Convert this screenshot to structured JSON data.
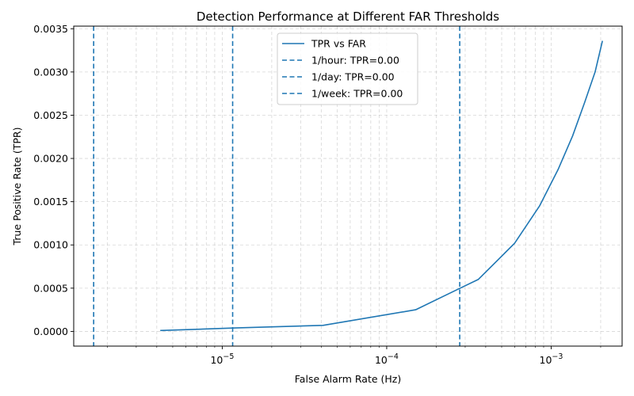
{
  "chart_data": {
    "type": "line",
    "title": "Detection Performance at Different FAR Thresholds",
    "xlabel": "False Alarm Rate (Hz)",
    "ylabel": "True Positive Rate (TPR)",
    "x_scale": "log",
    "xlim": [
      1.25e-06,
      0.0027
    ],
    "ylim": [
      -0.00017,
      0.00353
    ],
    "grid": true,
    "legend_position": "top-center",
    "xticks": [
      {
        "value": 1e-05,
        "base": "10",
        "exp": "−5"
      },
      {
        "value": 0.0001,
        "base": "10",
        "exp": "−4"
      },
      {
        "value": 0.001,
        "base": "10",
        "exp": "−3"
      }
    ],
    "yticks": [
      {
        "value": 0.0,
        "label": "0.0000"
      },
      {
        "value": 0.0005,
        "label": "0.0005"
      },
      {
        "value": 0.001,
        "label": "0.0010"
      },
      {
        "value": 0.0015,
        "label": "0.0015"
      },
      {
        "value": 0.002,
        "label": "0.0020"
      },
      {
        "value": 0.0025,
        "label": "0.0025"
      },
      {
        "value": 0.003,
        "label": "0.0030"
      },
      {
        "value": 0.0035,
        "label": "0.0035"
      }
    ],
    "series": [
      {
        "name": "TPR vs FAR",
        "color": "#1f77b4",
        "style": "solid",
        "x": [
          4.2e-06,
          1.2e-05,
          4.1e-05,
          0.00015,
          0.00028,
          0.00036,
          0.0006,
          0.00085,
          0.0011,
          0.00135,
          0.0016,
          0.00185,
          0.00205
        ],
        "y": [
          1e-05,
          4e-05,
          7e-05,
          0.00025,
          0.0005,
          0.0006,
          0.00102,
          0.00145,
          0.00187,
          0.00226,
          0.00265,
          0.003,
          0.00336
        ]
      }
    ],
    "vlines": [
      {
        "name": "1/hour: TPR=0.00",
        "x": 0.000278,
        "color": "#1f77b4",
        "style": "dashed"
      },
      {
        "name": "1/day: TPR=0.00",
        "x": 1.157e-05,
        "color": "#1f77b4",
        "style": "dashed"
      },
      {
        "name": "1/week: TPR=0.00",
        "x": 1.653e-06,
        "color": "#1f77b4",
        "style": "dashed"
      }
    ]
  }
}
